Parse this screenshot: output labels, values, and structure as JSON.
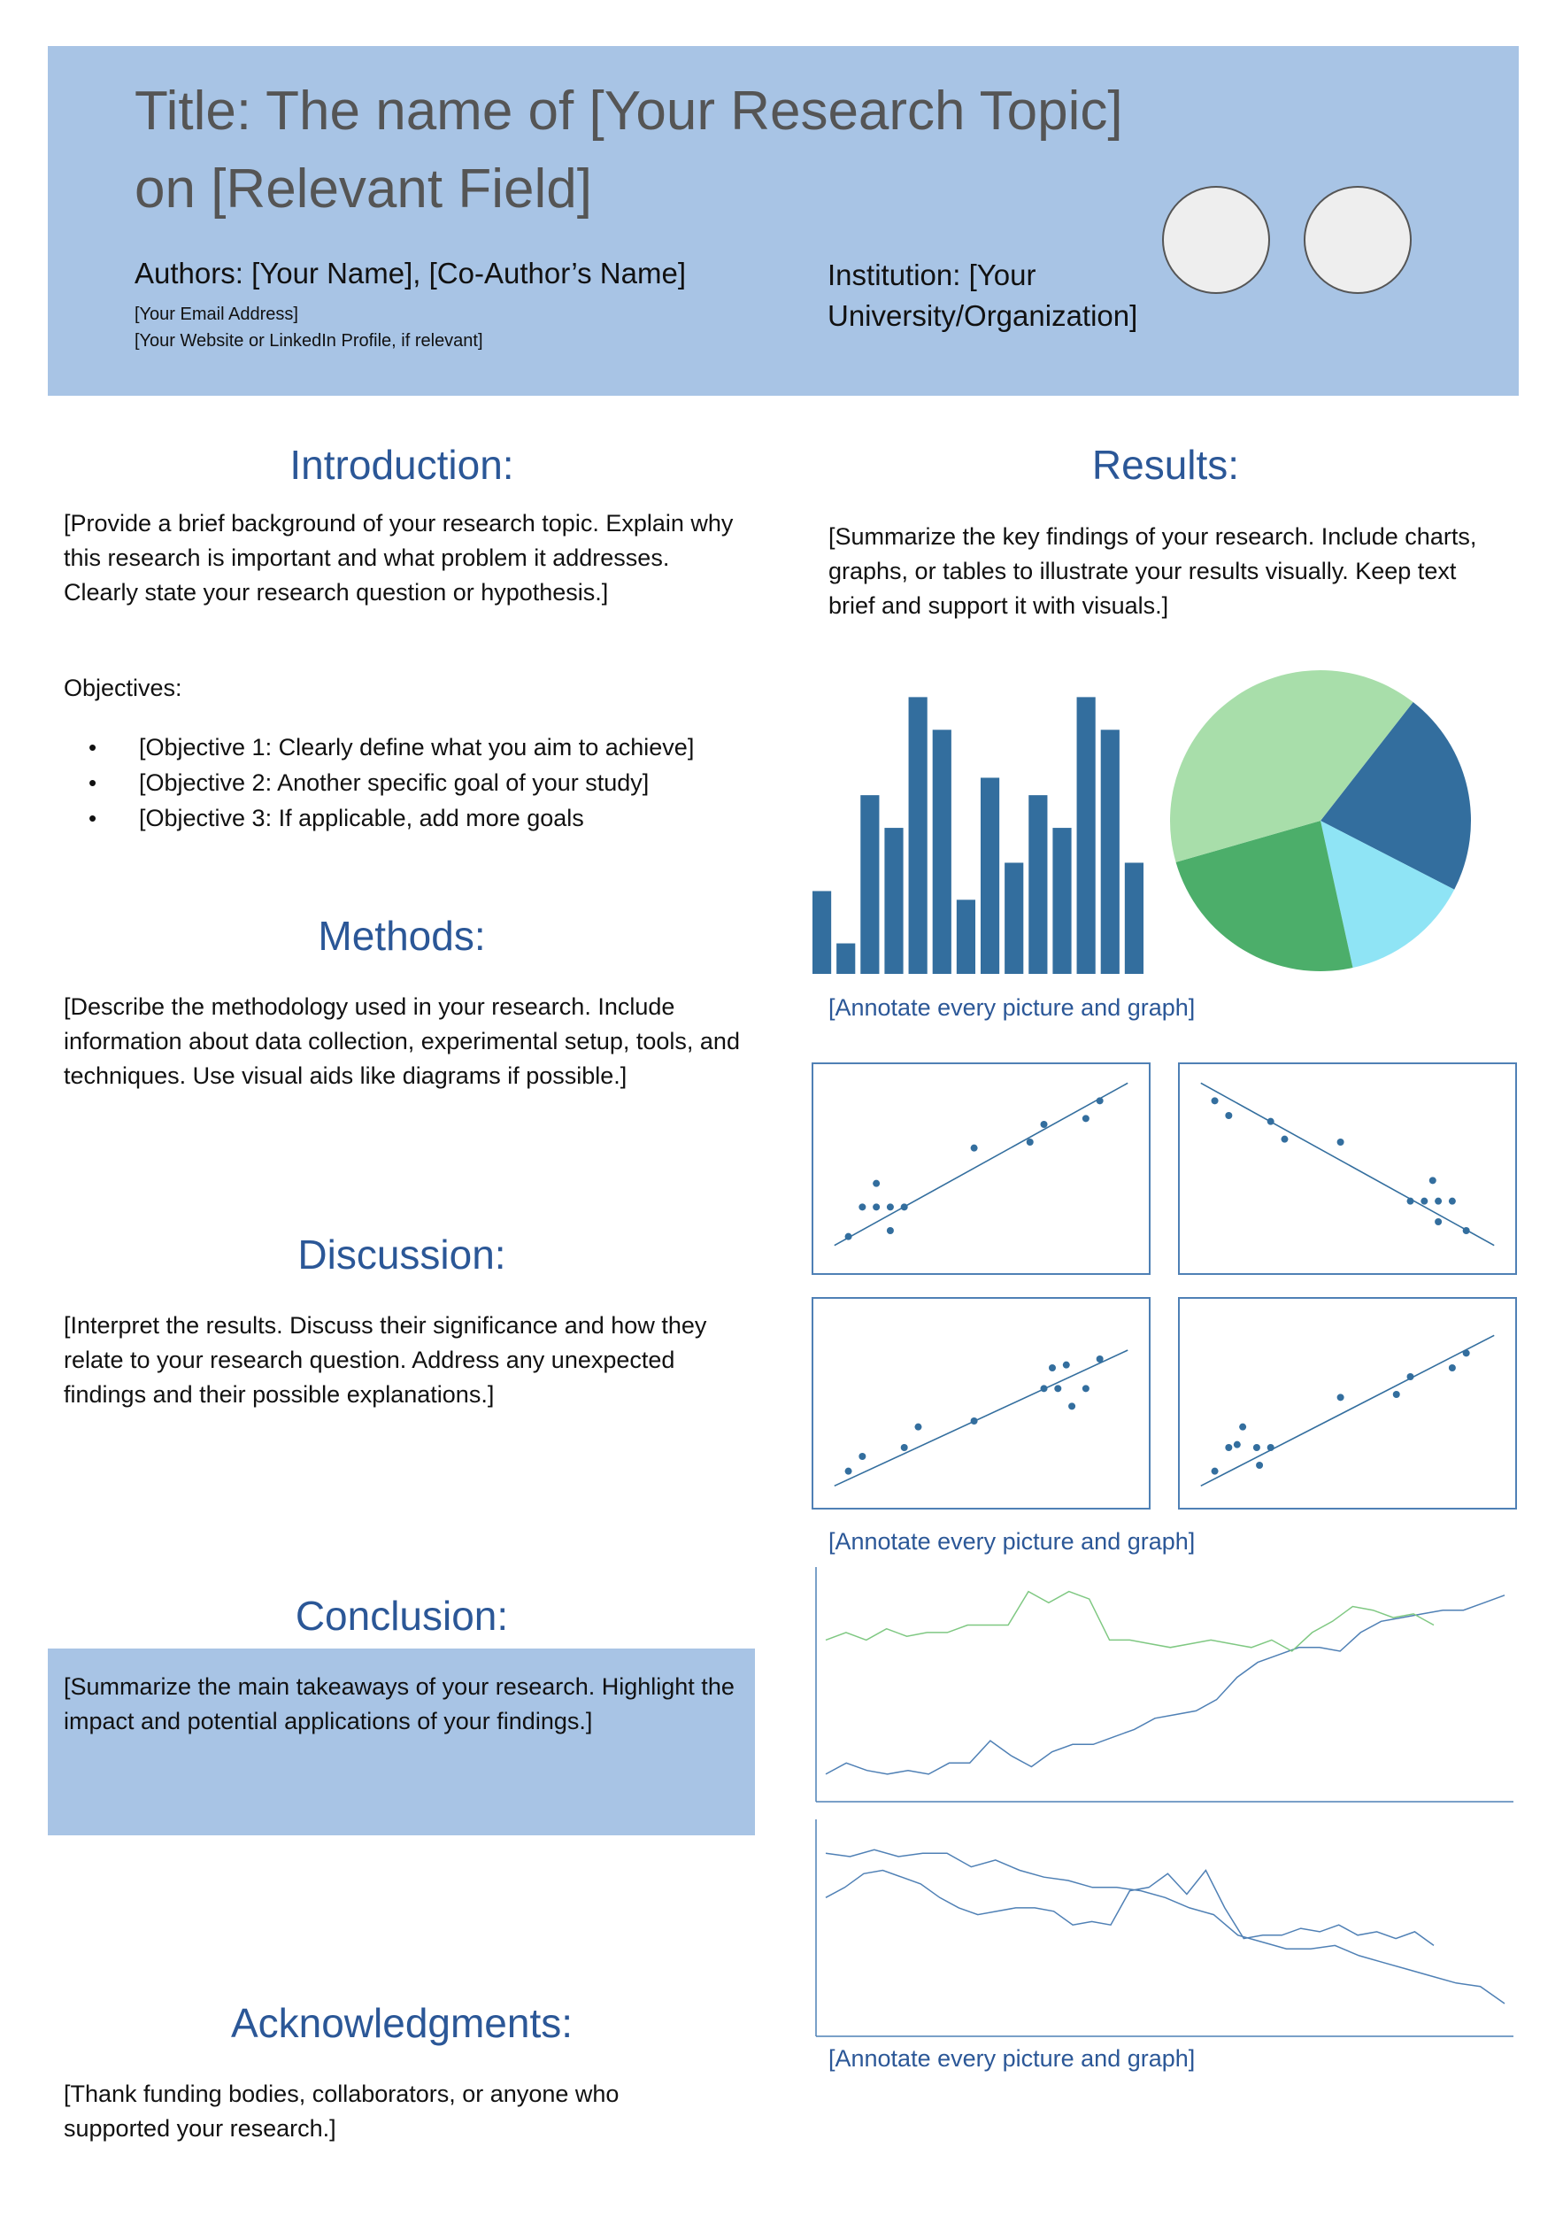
{
  "header": {
    "title": "Title: The name of [Your Research Topic] on [Relevant Field]",
    "authors": "Authors: [Your Name], [Co-Author’s Name]",
    "email": "[Your Email Address]",
    "website": "[Your Website or LinkedIn Profile, if relevant]",
    "institution": "Institution: [Your University/Organization]"
  },
  "introduction": {
    "heading": "Introduction:",
    "text": "[Provide a brief background of your research topic. Explain why this research is important and what problem it addresses. Clearly state your research question or hypothesis.]",
    "objectives_label": "Objectives:",
    "objectives": [
      "[Objective 1: Clearly define what you aim to achieve]",
      "[Objective 2: Another specific goal of your study]",
      "[Objective 3: If applicable, add more goals"
    ]
  },
  "methods": {
    "heading": "Methods:",
    "text": "[Describe the methodology used in your research. Include information about data collection, experimental setup, tools, and techniques. Use visual aids like diagrams if possible.]"
  },
  "discussion": {
    "heading": "Discussion:",
    "text": "[Interpret the results. Discuss their significance and how they relate to your research question. Address any unexpected findings and their possible explanations.]"
  },
  "conclusion": {
    "heading": "Conclusion:",
    "text": "[Summarize the main takeaways of your research. Highlight the impact and potential applications of your findings.]"
  },
  "acknowledgments": {
    "heading": "Acknowledgments:",
    "text": "[Thank funding bodies, collaborators, or anyone who supported your research.]"
  },
  "results": {
    "heading": "Results:",
    "text": "[Summarize the key findings of your research. Include charts, graphs, or tables to illustrate your results visually. Keep text brief and support it with visuals.]",
    "caption_1": "[Annotate every picture and graph]",
    "caption_2": "[Annotate every picture and graph]",
    "caption_3": "[Annotate every picture and graph]"
  },
  "colors": {
    "header_bg": "#a8c4e5",
    "heading": "#2b5797",
    "bar": "#336e9e",
    "line_blue": "#4f80b5",
    "line_green": "#7fc882",
    "pie": [
      "#336e9e",
      "#8fe4f5",
      "#4cae6a",
      "#a8deaa"
    ]
  },
  "chart_data": [
    {
      "type": "bar",
      "values": [
        3.8,
        1.4,
        8.2,
        6.7,
        12.7,
        11.2,
        3.4,
        9.0,
        5.1,
        8.2,
        6.7,
        12.7,
        11.2,
        5.1
      ],
      "ylim": [
        0,
        13
      ],
      "grid": false
    },
    {
      "type": "pie",
      "values": [
        22,
        14,
        24,
        40
      ],
      "start_angle_deg": -52
    },
    {
      "type": "scatter",
      "points": [
        [
          1,
          1.0
        ],
        [
          1.5,
          2.0
        ],
        [
          2,
          2.8
        ],
        [
          2,
          2.0
        ],
        [
          2.5,
          2.0
        ],
        [
          2.5,
          1.2
        ],
        [
          3,
          2.0
        ],
        [
          5.5,
          4.0
        ],
        [
          7.5,
          4.2
        ],
        [
          8,
          4.8
        ],
        [
          9.5,
          5.0
        ],
        [
          10,
          5.6
        ]
      ],
      "trend": [
        [
          0.5,
          0.7
        ],
        [
          11,
          6.2
        ]
      ]
    },
    {
      "type": "scatter",
      "points": [
        [
          1,
          5.6
        ],
        [
          1.5,
          5.1
        ],
        [
          3,
          4.9
        ],
        [
          3.5,
          4.3
        ],
        [
          5.5,
          4.2
        ],
        [
          8,
          2.2
        ],
        [
          8.5,
          2.2
        ],
        [
          8.8,
          2.9
        ],
        [
          9,
          2.2
        ],
        [
          9.5,
          2.2
        ],
        [
          9,
          1.5
        ],
        [
          10,
          1.2
        ]
      ],
      "trend": [
        [
          0.5,
          6.2
        ],
        [
          11,
          0.7
        ]
      ]
    },
    {
      "type": "scatter",
      "points": [
        [
          1,
          1.0
        ],
        [
          1.5,
          1.5
        ],
        [
          3,
          1.8
        ],
        [
          3.5,
          2.5
        ],
        [
          5.5,
          2.7
        ],
        [
          8,
          3.8
        ],
        [
          8.5,
          3.8
        ],
        [
          8.8,
          4.6
        ],
        [
          9,
          3.2
        ],
        [
          9.5,
          3.8
        ],
        [
          10,
          4.8
        ],
        [
          8.3,
          4.5
        ]
      ],
      "trend": [
        [
          0.5,
          0.5
        ],
        [
          11,
          5.1
        ]
      ]
    },
    {
      "type": "scatter",
      "points": [
        [
          1,
          1.0
        ],
        [
          1.5,
          1.8
        ],
        [
          2,
          2.5
        ],
        [
          2.5,
          1.8
        ],
        [
          3,
          1.8
        ],
        [
          2.6,
          1.2
        ],
        [
          5.5,
          3.5
        ],
        [
          7.5,
          3.6
        ],
        [
          8,
          4.2
        ],
        [
          9.5,
          4.5
        ],
        [
          10,
          5.0
        ],
        [
          1.8,
          1.9
        ]
      ],
      "trend": [
        [
          0.5,
          0.5
        ],
        [
          11,
          5.6
        ]
      ]
    },
    {
      "type": "line",
      "series": [
        {
          "values": [
            2.0,
            2.3,
            2.1,
            2.0,
            2.1,
            2.0,
            2.3,
            2.3,
            2.9,
            2.5,
            2.2,
            2.6,
            2.8,
            2.8,
            3.0,
            3.2,
            3.5,
            3.6,
            3.7,
            4.0,
            4.6,
            5.0,
            5.2,
            5.4,
            5.4,
            5.3,
            5.8,
            6.1,
            6.2,
            6.3,
            6.4,
            6.4,
            6.6,
            6.8
          ]
        },
        {
          "values": [
            5.6,
            5.8,
            5.6,
            5.9,
            5.7,
            5.8,
            5.8,
            6.0,
            6.0,
            6.0,
            6.9,
            6.6,
            6.9,
            6.7,
            5.6,
            5.6,
            5.5,
            5.4,
            5.5,
            5.6,
            5.5,
            5.4,
            5.6,
            5.3,
            5.8,
            6.1,
            6.5,
            6.4,
            6.2,
            6.3,
            6.0
          ]
        }
      ]
    },
    {
      "type": "line",
      "series": [
        {
          "values": [
            6.6,
            6.5,
            6.7,
            6.5,
            6.6,
            6.6,
            6.2,
            6.4,
            6.1,
            5.9,
            5.8,
            5.6,
            5.6,
            5.5,
            5.3,
            5.0,
            4.8,
            4.2,
            4.0,
            3.8,
            3.8,
            3.9,
            3.6,
            3.4,
            3.2,
            3.0,
            2.8,
            2.7,
            2.2
          ]
        },
        {
          "values": [
            5.3,
            5.6,
            6.0,
            6.1,
            5.9,
            5.7,
            5.3,
            5.0,
            4.8,
            4.9,
            5.0,
            5.0,
            4.9,
            4.5,
            4.6,
            4.5,
            5.5,
            5.6,
            6.0,
            5.4,
            6.1,
            5.0,
            4.1,
            4.2,
            4.2,
            4.4,
            4.3,
            4.5,
            4.2,
            4.3,
            4.1,
            4.3,
            3.9
          ]
        }
      ]
    }
  ]
}
